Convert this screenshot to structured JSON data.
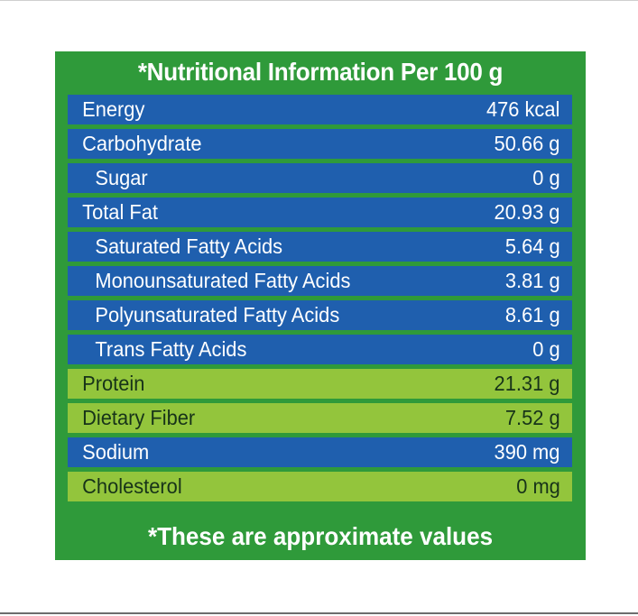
{
  "panel": {
    "title": "*Nutritional Information Per 100 g",
    "footer": "*These are approximate values",
    "colors": {
      "background": "#2f9a3a",
      "row_blue": "#1f5fae",
      "row_lime": "#93c53c"
    }
  },
  "rows": [
    {
      "label": "Energy",
      "value": "476 kcal"
    },
    {
      "label": "Carbohydrate",
      "value": "50.66 g"
    },
    {
      "label": "Sugar",
      "value": "0 g"
    },
    {
      "label": "Total Fat",
      "value": "20.93 g"
    },
    {
      "label": "Saturated Fatty Acids",
      "value": "5.64 g"
    },
    {
      "label": "Monounsaturated Fatty Acids",
      "value": "3.81 g"
    },
    {
      "label": "Polyunsaturated Fatty Acids",
      "value": "8.61 g"
    },
    {
      "label": "Trans Fatty Acids",
      "value": "0 g"
    },
    {
      "label": "Protein",
      "value": "21.31 g"
    },
    {
      "label": "Dietary Fiber",
      "value": "7.52 g"
    },
    {
      "label": "Sodium",
      "value": "390 mg"
    },
    {
      "label": "Cholesterol",
      "value": "0 mg"
    }
  ]
}
